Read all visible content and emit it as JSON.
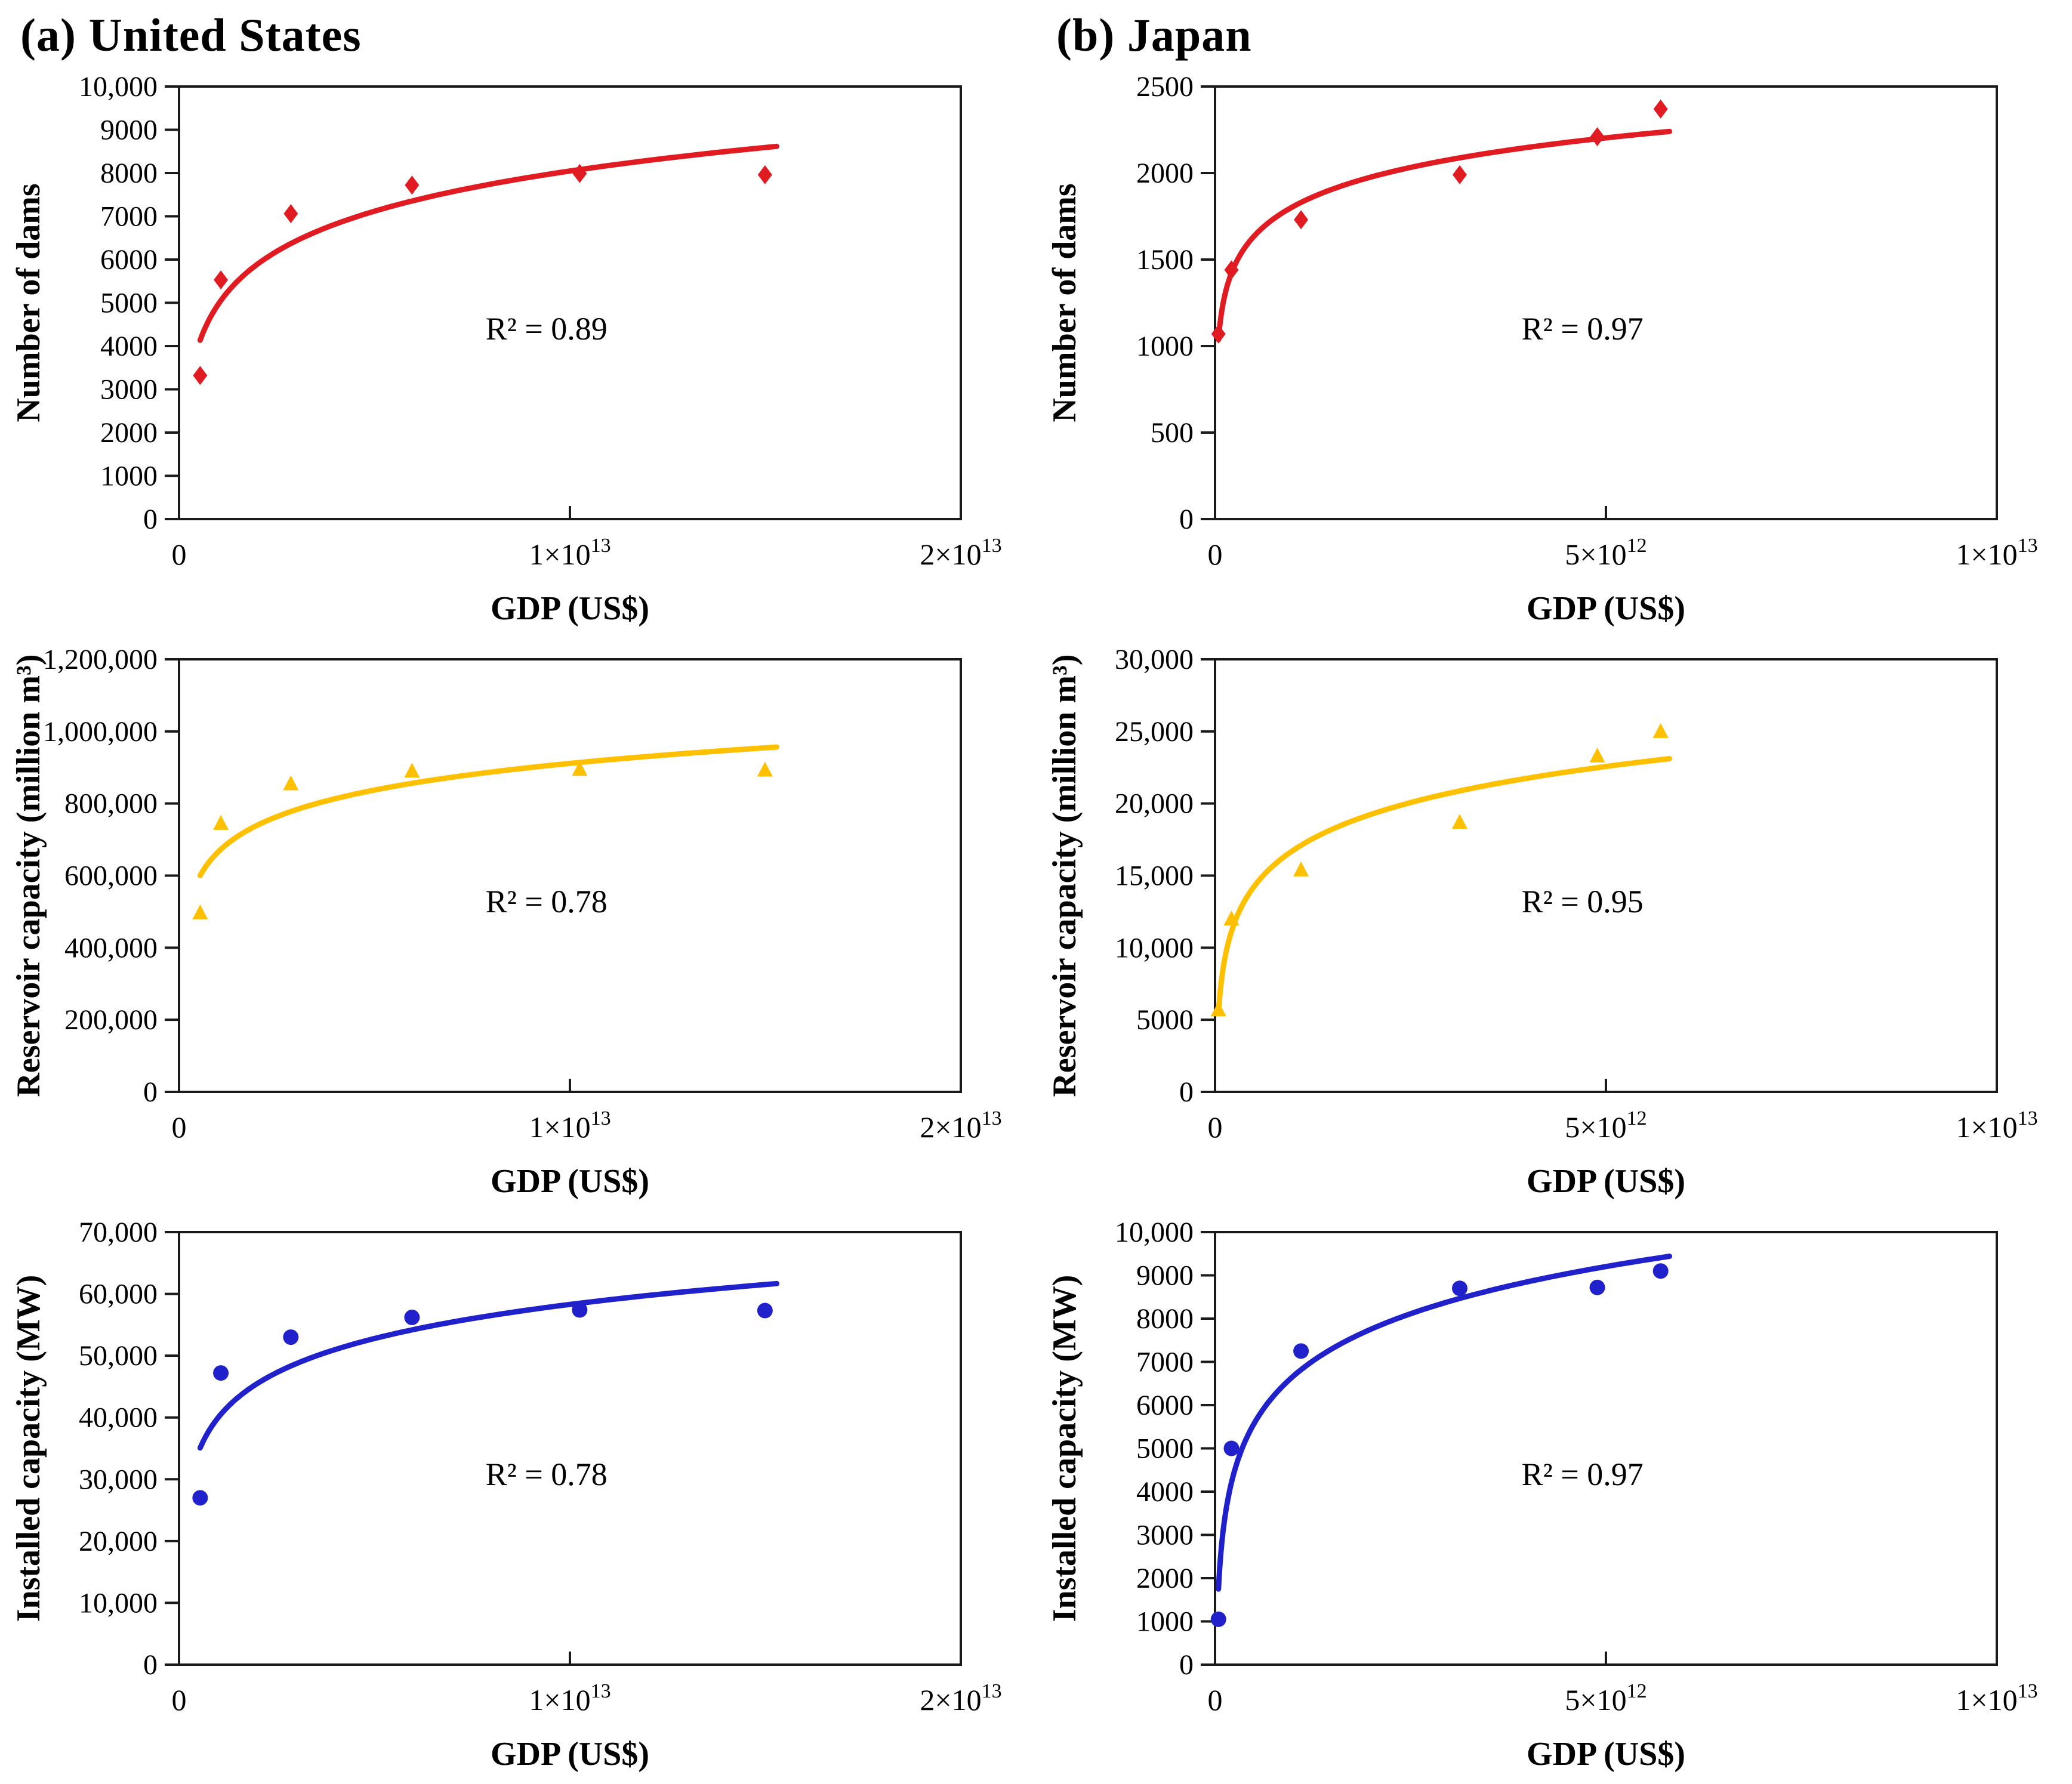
{
  "panels": [
    {
      "title": "(a) United States"
    },
    {
      "title": "(b) Japan"
    }
  ],
  "colors": {
    "dams": "#e01c22",
    "reservoir": "#ffc000",
    "installed": "#2121cc",
    "axis": "#1a1a1a"
  },
  "chart_data": [
    {
      "id": "us-number-of-dams",
      "type": "scatter",
      "marker": "diamond",
      "color": "#e01c22",
      "xlabel": "GDP (US$)",
      "ylabel": "Number of dams",
      "r2_label": "R² = 0.89",
      "fit": "log",
      "grid": false,
      "legend": "none",
      "xlim": [
        0,
        20000000000000.0
      ],
      "ylim": [
        0,
        10000
      ],
      "x": [
        540000000000.0,
        1070000000000.0,
        2860000000000.0,
        5960000000000.0,
        10250000000000.0,
        14990000000000.0
      ],
      "y": [
        3320,
        5530,
        7060,
        7720,
        7990,
        7960
      ],
      "x_ticks": [
        {
          "value": 0,
          "label": "0"
        },
        {
          "value": 10000000000000.0,
          "label": "1×10^13"
        },
        {
          "value": 20000000000000.0,
          "label": "2×10^13"
        }
      ],
      "y_ticks": [
        {
          "value": 0,
          "label": "0"
        },
        {
          "value": 1000,
          "label": "1000"
        },
        {
          "value": 2000,
          "label": "2000"
        },
        {
          "value": 3000,
          "label": "3000"
        },
        {
          "value": 4000,
          "label": "4000"
        },
        {
          "value": 5000,
          "label": "5000"
        },
        {
          "value": 6000,
          "label": "6000"
        },
        {
          "value": 7000,
          "label": "7000"
        },
        {
          "value": 8000,
          "label": "8000"
        },
        {
          "value": 9000,
          "label": "9000"
        },
        {
          "value": 10000,
          "label": "10,000"
        }
      ]
    },
    {
      "id": "us-reservoir-capacity",
      "type": "scatter",
      "marker": "triangle",
      "color": "#ffc000",
      "xlabel": "GDP (US$)",
      "ylabel": "Reservoir capacity (million m³)",
      "r2_label": "R² = 0.78",
      "fit": "log",
      "grid": false,
      "legend": "none",
      "xlim": [
        0,
        20000000000000.0
      ],
      "ylim": [
        0,
        1200000
      ],
      "x": [
        540000000000.0,
        1070000000000.0,
        2860000000000.0,
        5960000000000.0,
        10250000000000.0,
        14990000000000.0
      ],
      "y": [
        497000,
        745000,
        855000,
        890000,
        895000,
        893000
      ],
      "x_ticks": [
        {
          "value": 0,
          "label": "0"
        },
        {
          "value": 10000000000000.0,
          "label": "1×10^13"
        },
        {
          "value": 20000000000000.0,
          "label": "2×10^13"
        }
      ],
      "y_ticks": [
        {
          "value": 0,
          "label": "0"
        },
        {
          "value": 200000,
          "label": "200,000"
        },
        {
          "value": 400000,
          "label": "400,000"
        },
        {
          "value": 600000,
          "label": "600,000"
        },
        {
          "value": 800000,
          "label": "800,000"
        },
        {
          "value": 1000000,
          "label": "1,000,000"
        },
        {
          "value": 1200000,
          "label": "1,200,000"
        }
      ]
    },
    {
      "id": "us-installed-capacity",
      "type": "scatter",
      "marker": "circle",
      "color": "#2121cc",
      "xlabel": "GDP (US$)",
      "ylabel": "Installed capacity (MW)",
      "r2_label": "R² = 0.78",
      "fit": "log",
      "grid": false,
      "legend": "none",
      "xlim": [
        0,
        20000000000000.0
      ],
      "ylim": [
        0,
        70000
      ],
      "x": [
        540000000000.0,
        1070000000000.0,
        2860000000000.0,
        5960000000000.0,
        10250000000000.0,
        14990000000000.0
      ],
      "y": [
        27000,
        47200,
        53000,
        56200,
        57400,
        57300
      ],
      "x_ticks": [
        {
          "value": 0,
          "label": "0"
        },
        {
          "value": 10000000000000.0,
          "label": "1×10^13"
        },
        {
          "value": 20000000000000.0,
          "label": "2×10^13"
        }
      ],
      "y_ticks": [
        {
          "value": 0,
          "label": "0"
        },
        {
          "value": 10000,
          "label": "10,000"
        },
        {
          "value": 20000,
          "label": "20,000"
        },
        {
          "value": 30000,
          "label": "30,000"
        },
        {
          "value": 40000,
          "label": "40,000"
        },
        {
          "value": 50000,
          "label": "50,000"
        },
        {
          "value": 60000,
          "label": "60,000"
        },
        {
          "value": 70000,
          "label": "70,000"
        }
      ]
    },
    {
      "id": "japan-number-of-dams",
      "type": "scatter",
      "marker": "diamond",
      "color": "#e01c22",
      "xlabel": "GDP (US$)",
      "ylabel": "Number of dams",
      "r2_label": "R² = 0.97",
      "fit": "log",
      "grid": false,
      "legend": "none",
      "xlim": [
        0,
        10000000000000.0
      ],
      "ylim": [
        0,
        2500
      ],
      "x": [
        44000000000.0,
        210000000000.0,
        1100000000000.0,
        3130000000000.0,
        4890000000000.0,
        5700000000000.0
      ],
      "y": [
        1070,
        1440,
        1730,
        1990,
        2210,
        2370
      ],
      "x_ticks": [
        {
          "value": 0,
          "label": "0"
        },
        {
          "value": 5000000000000.0,
          "label": "5×10^12"
        },
        {
          "value": 10000000000000.0,
          "label": "1×10^13"
        }
      ],
      "y_ticks": [
        {
          "value": 0,
          "label": "0"
        },
        {
          "value": 500,
          "label": "500"
        },
        {
          "value": 1000,
          "label": "1000"
        },
        {
          "value": 1500,
          "label": "1500"
        },
        {
          "value": 2000,
          "label": "2000"
        },
        {
          "value": 2500,
          "label": "2500"
        }
      ]
    },
    {
      "id": "japan-reservoir-capacity",
      "type": "scatter",
      "marker": "triangle",
      "color": "#ffc000",
      "xlabel": "GDP (US$)",
      "ylabel": "Reservoir capacity (million m³)",
      "r2_label": "R² = 0.95",
      "fit": "log",
      "grid": false,
      "legend": "none",
      "xlim": [
        0,
        10000000000000.0
      ],
      "ylim": [
        0,
        30000
      ],
      "x": [
        44000000000.0,
        210000000000.0,
        1100000000000.0,
        3130000000000.0,
        4890000000000.0,
        5700000000000.0
      ],
      "y": [
        5700,
        12000,
        15400,
        18700,
        23300,
        25000
      ],
      "x_ticks": [
        {
          "value": 0,
          "label": "0"
        },
        {
          "value": 5000000000000.0,
          "label": "5×10^12"
        },
        {
          "value": 10000000000000.0,
          "label": "1×10^13"
        }
      ],
      "y_ticks": [
        {
          "value": 0,
          "label": "0"
        },
        {
          "value": 5000,
          "label": "5000"
        },
        {
          "value": 10000,
          "label": "10,000"
        },
        {
          "value": 15000,
          "label": "15,000"
        },
        {
          "value": 20000,
          "label": "20,000"
        },
        {
          "value": 25000,
          "label": "25,000"
        },
        {
          "value": 30000,
          "label": "30,000"
        }
      ]
    },
    {
      "id": "japan-installed-capacity",
      "type": "scatter",
      "marker": "circle",
      "color": "#2121cc",
      "xlabel": "GDP (US$)",
      "ylabel": "Installed capacity (MW)",
      "r2_label": "R² = 0.97",
      "fit": "log",
      "grid": false,
      "legend": "none",
      "xlim": [
        0,
        10000000000000.0
      ],
      "ylim": [
        0,
        10000
      ],
      "x": [
        44000000000.0,
        210000000000.0,
        1100000000000.0,
        3130000000000.0,
        4890000000000.0,
        5700000000000.0
      ],
      "y": [
        1050,
        5000,
        7250,
        8700,
        8720,
        9100
      ],
      "x_ticks": [
        {
          "value": 0,
          "label": "0"
        },
        {
          "value": 5000000000000.0,
          "label": "5×10^12"
        },
        {
          "value": 10000000000000.0,
          "label": "1×10^13"
        }
      ],
      "y_ticks": [
        {
          "value": 0,
          "label": "0"
        },
        {
          "value": 1000,
          "label": "1000"
        },
        {
          "value": 2000,
          "label": "2000"
        },
        {
          "value": 3000,
          "label": "3000"
        },
        {
          "value": 4000,
          "label": "4000"
        },
        {
          "value": 5000,
          "label": "5000"
        },
        {
          "value": 6000,
          "label": "6000"
        },
        {
          "value": 7000,
          "label": "7000"
        },
        {
          "value": 8000,
          "label": "8000"
        },
        {
          "value": 9000,
          "label": "9000"
        },
        {
          "value": 10000,
          "label": "10,000"
        }
      ]
    }
  ]
}
